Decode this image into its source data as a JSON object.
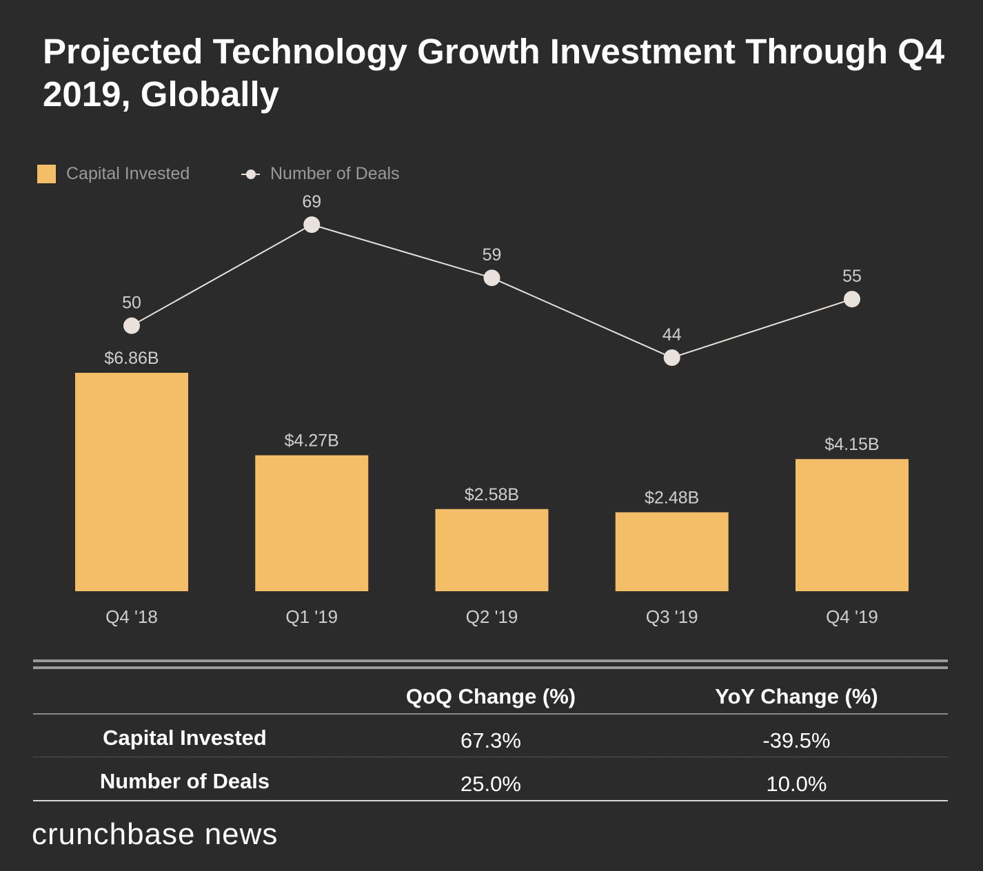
{
  "title": "Projected Technology Growth Investment Through Q4 2019, Globally",
  "colors": {
    "background": "#2b2b2b",
    "bar": "#f4bd68",
    "line": "#e9e1dc",
    "text_muted": "#9a9a9a",
    "text_label": "#cfcfcf"
  },
  "legend": {
    "bar_label": "Capital Invested",
    "line_label": "Number of Deals"
  },
  "chart_data": {
    "type": "bar",
    "categories": [
      "Q4 '18",
      "Q1 '19",
      "Q2 '19",
      "Q3 '19",
      "Q4 '19"
    ],
    "series": [
      {
        "name": "Capital Invested",
        "type": "bar",
        "values": [
          6.86,
          4.27,
          2.58,
          2.48,
          4.15
        ],
        "labels": [
          "$6.86B",
          "$4.27B",
          "$2.58B",
          "$2.48B",
          "$4.15B"
        ]
      },
      {
        "name": "Number of Deals",
        "type": "line",
        "values": [
          50,
          69,
          59,
          44,
          55
        ],
        "labels": [
          "50",
          "69",
          "59",
          "44",
          "55"
        ]
      }
    ],
    "title": "Projected Technology Growth Investment Through Q4 2019, Globally",
    "xlabel": "",
    "ylabel": "",
    "bar_ylim": [
      0,
      6.86
    ],
    "line_ylim": [
      44,
      69
    ]
  },
  "table": {
    "headers": [
      "QoQ Change (%)",
      "YoY Change (%)"
    ],
    "rows": [
      {
        "label": "Capital Invested",
        "qoq": "67.3%",
        "yoy": "-39.5%"
      },
      {
        "label": "Number of Deals",
        "qoq": "25.0%",
        "yoy": "10.0%"
      }
    ]
  },
  "brand": "crunchbase news"
}
